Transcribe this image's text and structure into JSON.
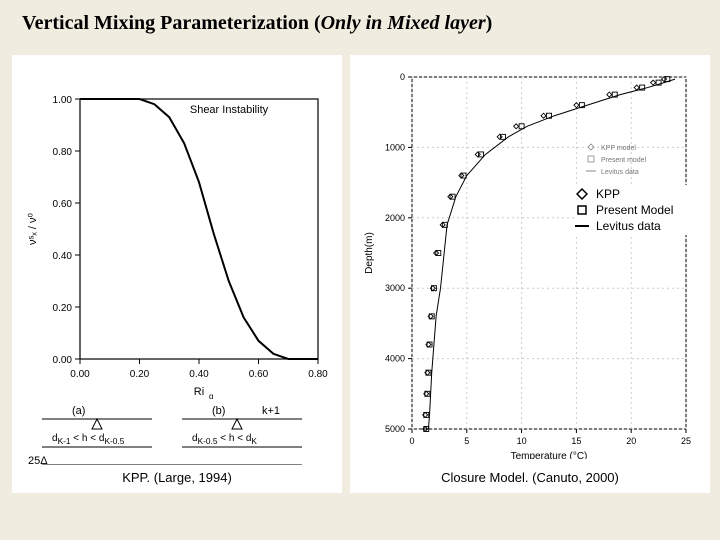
{
  "title": {
    "main": "Vertical Mixing Parameterization (",
    "italic": "Only in Mixed layer",
    "end": ")"
  },
  "left_panel": {
    "caption": "KPP. (Large, 1994)",
    "top_chart": {
      "type": "line",
      "title": "Shear Instability",
      "title_fontsize": 11,
      "xlabel": "Ri_g",
      "ylabel": "ν_x^s / ν^0",
      "xlim": [
        0,
        0.8
      ],
      "ylim": [
        0,
        1.0
      ],
      "xticks": [
        0.0,
        0.2,
        0.4,
        0.6,
        0.8
      ],
      "yticks": [
        0.0,
        0.2,
        0.4,
        0.6,
        0.8,
        1.0
      ],
      "line_color": "#000000",
      "line_width": 2,
      "x": [
        0.0,
        0.1,
        0.2,
        0.25,
        0.3,
        0.35,
        0.4,
        0.45,
        0.5,
        0.55,
        0.6,
        0.65,
        0.7,
        0.75,
        0.8
      ],
      "y": [
        1.0,
        1.0,
        1.0,
        0.98,
        0.93,
        0.83,
        0.68,
        0.48,
        0.3,
        0.16,
        0.07,
        0.02,
        0.0,
        0.0,
        0.0
      ],
      "background_color": "#ffffff",
      "axis_color": "#000000"
    },
    "bottom_labels": {
      "a": "(a)",
      "b": "(b)",
      "k1": "k+1",
      "left_formula": "d_{K-1} < h < d_{K-0.5}",
      "right_formula": "d_{K-0.5} < h < d_K",
      "delta": "25Δ"
    }
  },
  "right_panel": {
    "caption": "Closure Model. (Canuto, 2000)",
    "chart": {
      "type": "scatter-line",
      "xlabel": "Temperature (°C)",
      "ylabel": "Depth(m)",
      "xlim": [
        0,
        25
      ],
      "ylim": [
        5000,
        0
      ],
      "xticks": [
        0,
        5,
        10,
        15,
        20,
        25
      ],
      "yticks": [
        0,
        1000,
        2000,
        3000,
        4000,
        5000
      ],
      "series": [
        {
          "name": "KPP",
          "legend_label": "KPP",
          "marker": "diamond",
          "marker_size": 5,
          "color": "#000000",
          "x": [
            23,
            22,
            20.5,
            18,
            15,
            12,
            9.5,
            8,
            6,
            4.5,
            3.5,
            2.8,
            2.2,
            1.9,
            1.7,
            1.5,
            1.4,
            1.3,
            1.2,
            1.2
          ],
          "y": [
            30,
            80,
            150,
            250,
            400,
            550,
            700,
            850,
            1100,
            1400,
            1700,
            2100,
            2500,
            3000,
            3400,
            3800,
            4200,
            4500,
            4800,
            5000
          ]
        },
        {
          "name": "Present Model",
          "legend_label": "Present Model",
          "marker": "square",
          "marker_size": 5,
          "color": "#000000",
          "x": [
            23.3,
            22.5,
            21,
            18.5,
            15.5,
            12.5,
            10,
            8.3,
            6.3,
            4.7,
            3.7,
            3.0,
            2.4,
            2.0,
            1.8,
            1.6,
            1.5,
            1.4,
            1.3,
            1.3
          ],
          "y": [
            30,
            80,
            150,
            250,
            400,
            550,
            700,
            850,
            1100,
            1400,
            1700,
            2100,
            2500,
            3000,
            3400,
            3800,
            4200,
            4500,
            4800,
            5000
          ]
        },
        {
          "name": "Levitus data",
          "legend_label": "Levitus data",
          "type": "line",
          "color": "#000000",
          "line_width": 1,
          "x": [
            24,
            23,
            21.5,
            19,
            16,
            13,
            10.5,
            8.8,
            6.7,
            5.0,
            4.0,
            3.2,
            2.6,
            2.2,
            2.0,
            1.8,
            1.7,
            1.6,
            1.5,
            1.5
          ],
          "y": [
            30,
            80,
            150,
            250,
            400,
            550,
            700,
            850,
            1100,
            1400,
            1700,
            2100,
            3000,
            3400,
            3800,
            4200,
            4500,
            4800,
            5000,
            5000
          ]
        }
      ],
      "small_legend": {
        "items": [
          "KPP model",
          "Present model",
          "Levitus data"
        ]
      },
      "grid_color": "#cccccc",
      "axis_color": "#000000",
      "background_color": "#ffffff"
    }
  }
}
